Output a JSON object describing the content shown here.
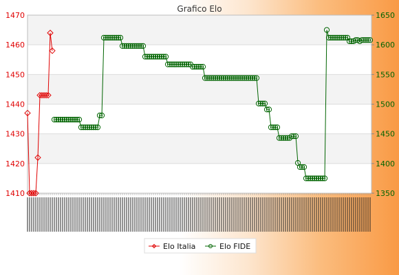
{
  "chart_data": {
    "type": "line",
    "title": "Grafico Elo",
    "legend_position": "bottom",
    "grid": true,
    "axes": {
      "left": {
        "ylim": [
          1410,
          1470
        ],
        "ticks": [
          1410,
          1420,
          1430,
          1440,
          1450,
          1460,
          1470
        ],
        "color": "#e00000"
      },
      "right": {
        "ylim": [
          1350,
          1650
        ],
        "ticks": [
          1350,
          1400,
          1450,
          1500,
          1550,
          1600,
          1650
        ],
        "color": "#006400"
      }
    },
    "series": [
      {
        "name": "Elo Italia",
        "axis": "left",
        "color": "#e00000",
        "marker": "diamond",
        "values": [
          1437,
          1410,
          1410,
          1410,
          1410,
          1422,
          1443,
          1443,
          1443,
          1443,
          1443,
          1464,
          1458
        ]
      },
      {
        "name": "Elo FIDE",
        "axis": "right",
        "color": "#006400",
        "marker": "circle",
        "start_index": 13,
        "values": [
          1474,
          1474,
          1474,
          1474,
          1474,
          1474,
          1474,
          1474,
          1474,
          1474,
          1474,
          1474,
          1474,
          1461,
          1461,
          1461,
          1461,
          1461,
          1461,
          1461,
          1461,
          1461,
          1481,
          1481,
          1612,
          1612,
          1612,
          1612,
          1612,
          1612,
          1612,
          1612,
          1612,
          1598,
          1598,
          1598,
          1598,
          1598,
          1598,
          1598,
          1598,
          1598,
          1598,
          1598,
          1580,
          1580,
          1580,
          1580,
          1580,
          1580,
          1580,
          1580,
          1580,
          1580,
          1580,
          1567,
          1567,
          1567,
          1567,
          1567,
          1567,
          1567,
          1567,
          1567,
          1567,
          1567,
          1567,
          1563,
          1563,
          1563,
          1563,
          1563,
          1563,
          1544,
          1544,
          1544,
          1544,
          1544,
          1544,
          1544,
          1544,
          1544,
          1544,
          1544,
          1544,
          1544,
          1544,
          1544,
          1544,
          1544,
          1544,
          1544,
          1544,
          1544,
          1544,
          1544,
          1544,
          1544,
          1544,
          1501,
          1501,
          1501,
          1501,
          1491,
          1491,
          1461,
          1461,
          1461,
          1461,
          1443,
          1443,
          1443,
          1443,
          1443,
          1443,
          1446,
          1446,
          1446,
          1401,
          1394,
          1394,
          1394,
          1375,
          1375,
          1375,
          1375,
          1375,
          1375,
          1375,
          1375,
          1375,
          1375,
          1625,
          1612,
          1612,
          1612,
          1612,
          1612,
          1612,
          1612,
          1612,
          1612,
          1612,
          1606,
          1606,
          1606,
          1608,
          1608,
          1606,
          1608,
          1608,
          1608,
          1608,
          1608
        ]
      }
    ]
  }
}
